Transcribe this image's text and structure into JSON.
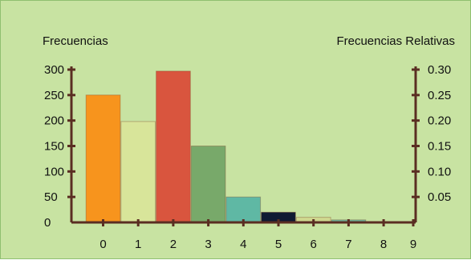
{
  "chart_data": {
    "type": "bar",
    "ylabel_left": "Frecuencias",
    "ylabel_right": "Frecuencias Relativas",
    "x_ticks": [
      "0",
      "1",
      "2",
      "3",
      "4",
      "5",
      "6",
      "7",
      "8",
      "9"
    ],
    "categories": [
      "0",
      "1",
      "2",
      "3",
      "4",
      "5",
      "6",
      "7",
      "8"
    ],
    "values": [
      250,
      198,
      297,
      150,
      50,
      20,
      10,
      5,
      0
    ],
    "bar_colors": [
      "#f7941d",
      "#d8e59a",
      "#d9553e",
      "#78a96a",
      "#5fb8a4",
      "#0f1a33",
      "#cfd88f",
      "#6fb89e",
      "#6fb89e"
    ],
    "ylim_left": [
      0,
      300
    ],
    "ytick_left": [
      "0",
      "50",
      "100",
      "150",
      "200",
      "250",
      "300"
    ],
    "ylim_right": [
      0,
      0.3
    ],
    "ytick_right": [
      "0.05",
      "0.10",
      "0.15",
      "0.20",
      "0.25",
      "0.30"
    ],
    "axis_color": "#5a2e22",
    "background_color": "#c8e3a2",
    "grid": false
  }
}
